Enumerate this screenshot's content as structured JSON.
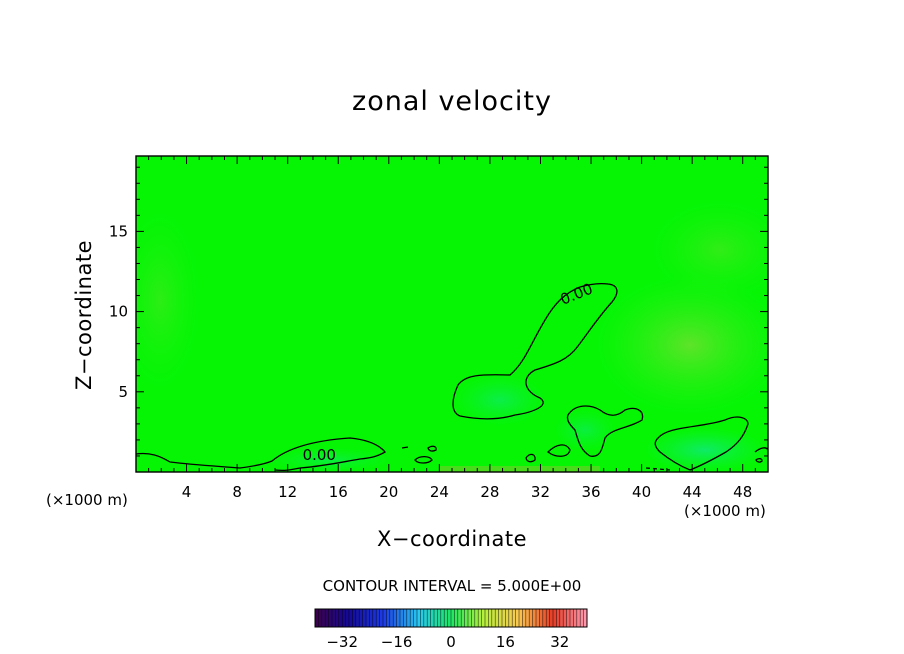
{
  "chart_data": {
    "type": "heatmap",
    "title": "zonal velocity",
    "xlabel": "X−coordinate",
    "ylabel": "Z−coordinate",
    "x_unit": "(×1000 m)",
    "y_unit": "(×1000 m)",
    "xlim": [
      0,
      50
    ],
    "ylim": [
      0,
      19.7
    ],
    "x_ticks": [
      4,
      8,
      12,
      16,
      20,
      24,
      28,
      32,
      36,
      40,
      44,
      48
    ],
    "y_ticks": [
      5,
      10,
      15
    ],
    "contour_labels": [
      {
        "text": "0.00",
        "x": 14.5,
        "y": 0.75
      },
      {
        "text": "0.00",
        "x": 35.0,
        "y": 10.8
      }
    ],
    "contour_interval_text": "CONTOUR INTERVAL =  5.000E+00",
    "colorbar": {
      "min": -40,
      "max": 40,
      "ticks": [
        -32,
        -16,
        0,
        16,
        32
      ]
    },
    "field_note_colors": {
      "background": "#05f505",
      "positive_light": "#4ef028",
      "negative_light": "#10f08a"
    }
  }
}
